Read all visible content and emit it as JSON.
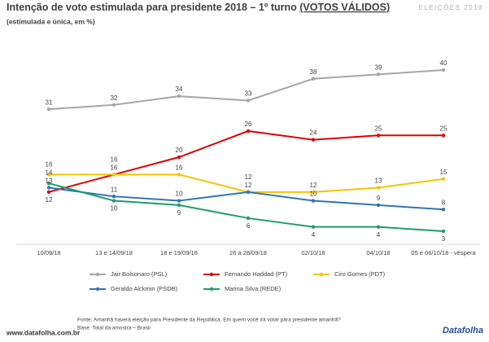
{
  "chart_data": {
    "type": "line",
    "title": "Intenção de voto estimulada para presidente 2018 – 1º turno",
    "title_emphasis": "(VOTOS VÁLIDOS)",
    "subtitle": "(estimulada e única, em %)",
    "brand_top": "ELEIÇÕES 2018",
    "categories": [
      "10/09/18",
      "13 e 14/09/18",
      "18 e 19/09/18",
      "26 a 28/09/18",
      "02/10/18",
      "04/10/18",
      "05 e 06/10/18 - véspera"
    ],
    "series": [
      {
        "name": "Jair Bolsonaro (PSL)",
        "color": "#a6a6a6",
        "values": [
          31,
          32,
          34,
          33,
          38,
          39,
          40
        ]
      },
      {
        "name": "Fernando Haddad (PT)",
        "color": "#e00000",
        "values": [
          12,
          16,
          20,
          26,
          24,
          25,
          25
        ]
      },
      {
        "name": "Ciro Gomes (PDT)",
        "color": "#f5c400",
        "values": [
          16,
          16,
          16,
          12,
          12,
          13,
          15
        ]
      },
      {
        "name": "Geraldo Alckmin (PSDB)",
        "color": "#2e75b6",
        "values": [
          13,
          11,
          10,
          12,
          10,
          9,
          8
        ]
      },
      {
        "name": "Marina Silva (REDE)",
        "color": "#1f9e6e",
        "values": [
          14,
          10,
          9,
          6,
          4,
          4,
          3
        ]
      }
    ],
    "footnote": "Fonte:  Amanhã haverá eleição para Presidente da República. Em quem você irá votar para presidente amanhã?",
    "base": "Base: Total da amostra – Brasil",
    "website": "www.datafolha.com.br",
    "logo": "Datafolha"
  }
}
